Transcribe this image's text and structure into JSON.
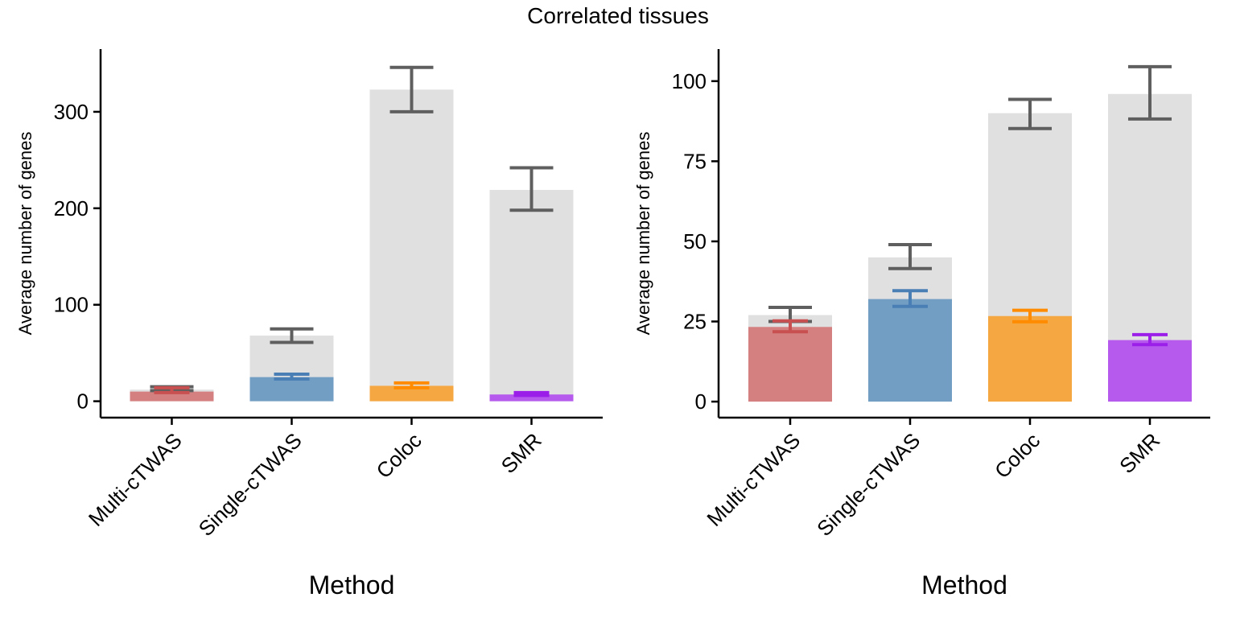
{
  "figure": {
    "title": "Correlated tissues"
  },
  "colors": {
    "background_bar": "#e0e0e0",
    "error_bar_total": "#5f5f5f",
    "Multi-cTWAS": "#d48080",
    "Multi-cTWAS_err": "#c85050",
    "Single-cTWAS": "#739ec4",
    "Single-cTWAS_err": "#4a7fb5",
    "Coloc": "#f5a742",
    "Coloc_err": "#ff8c00",
    "SMR": "#b65aed",
    "SMR_err": "#9b1fe8"
  },
  "chart_data": [
    {
      "type": "bar",
      "title": "",
      "xlabel": "Method",
      "ylabel": "Average number of genes",
      "categories": [
        "Multi-cTWAS",
        "Single-cTWAS",
        "Coloc",
        "SMR"
      ],
      "ylim": [
        -17,
        365
      ],
      "yticks": [
        0,
        100,
        200,
        300
      ],
      "grid": false,
      "series": [
        {
          "name": "",
          "role": "total",
          "values": [
            12,
            68,
            323,
            219
          ],
          "err_low": [
            11,
            61,
            300,
            198
          ],
          "err_high": [
            15,
            75,
            346,
            242
          ]
        },
        {
          "name": "",
          "role": "subset",
          "values": [
            10,
            25,
            16,
            7
          ],
          "err_low": [
            9,
            23,
            14,
            6
          ],
          "err_high": [
            14,
            28,
            19,
            9
          ]
        }
      ]
    },
    {
      "type": "bar",
      "title": "",
      "xlabel": "Method",
      "ylabel": "Average number of genes",
      "categories": [
        "Multi-cTWAS",
        "Single-cTWAS",
        "Coloc",
        "SMR"
      ],
      "ylim": [
        -5,
        110
      ],
      "yticks": [
        0,
        25,
        50,
        75,
        100
      ],
      "grid": false,
      "series": [
        {
          "name": "",
          "role": "total",
          "values": [
            27,
            45,
            90,
            96
          ],
          "err_low": [
            25,
            41.5,
            85.2,
            88.2
          ],
          "err_high": [
            29.4,
            49,
            94.3,
            104.5
          ]
        },
        {
          "name": "",
          "role": "subset",
          "values": [
            23.3,
            32,
            26.7,
            19.2
          ],
          "err_low": [
            21.8,
            29.7,
            24.9,
            17.8
          ],
          "err_high": [
            25.2,
            34.6,
            28.5,
            20.9
          ]
        }
      ]
    }
  ]
}
